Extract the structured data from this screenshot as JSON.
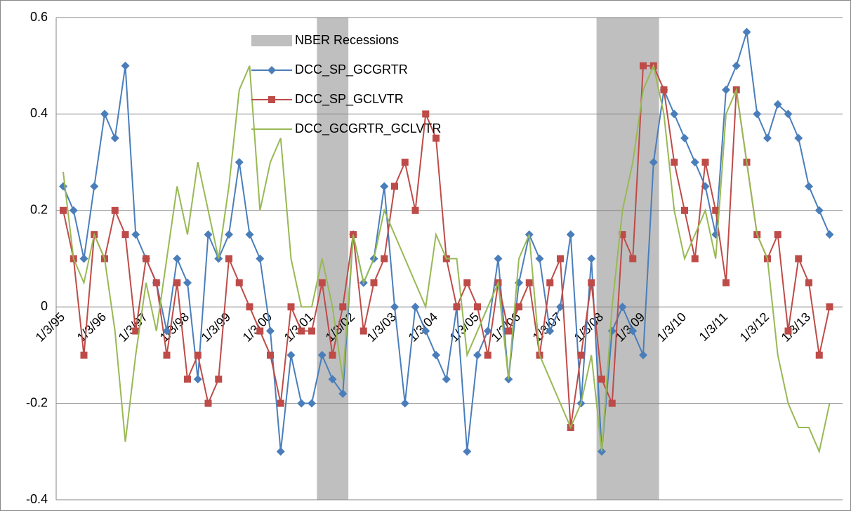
{
  "chart_data": {
    "type": "line",
    "categories": [
      "1/3/95",
      null,
      null,
      null,
      "1/3/96",
      null,
      null,
      null,
      "1/3/97",
      null,
      null,
      null,
      "1/3/98",
      null,
      null,
      null,
      "1/3/99",
      null,
      null,
      null,
      "1/3/00",
      null,
      null,
      null,
      "1/3/01",
      null,
      null,
      null,
      "1/3/02",
      null,
      null,
      null,
      "1/3/03",
      null,
      null,
      null,
      "1/3/04",
      null,
      null,
      null,
      "1/3/05",
      null,
      null,
      null,
      "1/3/06",
      null,
      null,
      null,
      "1/3/07",
      null,
      null,
      null,
      "1/3/08",
      null,
      null,
      null,
      "1/3/09",
      null,
      null,
      null,
      "1/3/10",
      null,
      null,
      null,
      "1/3/11",
      null,
      null,
      null,
      "1/3/12",
      null,
      null,
      null,
      "1/3/13",
      null,
      null
    ],
    "series": [
      {
        "name": "NBER Recessions",
        "type": "bar",
        "color": "#bfbfbf",
        "values": [
          null,
          null,
          null,
          null,
          null,
          null,
          null,
          null,
          null,
          null,
          null,
          null,
          null,
          null,
          null,
          null,
          null,
          null,
          null,
          null,
          null,
          null,
          null,
          null,
          null,
          0.6,
          0.6,
          0.6,
          null,
          null,
          null,
          null,
          null,
          null,
          null,
          null,
          null,
          null,
          null,
          null,
          null,
          null,
          null,
          null,
          null,
          null,
          null,
          null,
          null,
          null,
          null,
          null,
          0.6,
          0.6,
          0.6,
          0.6,
          0.6,
          0.6,
          null,
          null,
          null,
          null,
          null,
          null,
          null,
          null,
          null,
          null,
          null,
          null,
          null,
          null,
          null,
          null,
          null
        ]
      },
      {
        "name": "DCC_SP_GCGRTR",
        "type": "line",
        "marker": "diamond",
        "color": "#4a7ebb",
        "values": [
          0.25,
          0.2,
          0.1,
          0.25,
          0.4,
          0.35,
          0.5,
          0.15,
          0.1,
          0.05,
          -0.05,
          0.1,
          0.05,
          -0.15,
          0.15,
          0.1,
          0.15,
          0.3,
          0.15,
          0.1,
          -0.05,
          -0.3,
          -0.1,
          -0.2,
          -0.2,
          -0.1,
          -0.15,
          -0.18,
          0.15,
          0.05,
          0.1,
          0.25,
          0.0,
          -0.2,
          0.0,
          -0.05,
          -0.1,
          -0.15,
          0.0,
          -0.3,
          -0.1,
          -0.05,
          0.1,
          -0.15,
          0.05,
          0.15,
          0.1,
          -0.05,
          0.0,
          0.15,
          -0.2,
          0.1,
          -0.3,
          -0.05,
          0.0,
          -0.05,
          -0.1,
          0.3,
          0.45,
          0.4,
          0.35,
          0.3,
          0.25,
          0.15,
          0.45,
          0.5,
          0.57,
          0.4,
          0.35,
          0.42,
          0.4,
          0.35,
          0.25,
          0.2,
          0.15
        ]
      },
      {
        "name": "DCC_SP_GCLVTR",
        "type": "line",
        "marker": "square",
        "color": "#be4b48",
        "values": [
          0.2,
          0.1,
          -0.1,
          0.15,
          0.1,
          0.2,
          0.15,
          -0.05,
          0.1,
          0.05,
          -0.1,
          0.05,
          -0.15,
          -0.1,
          -0.2,
          -0.15,
          0.1,
          0.05,
          0.0,
          -0.05,
          -0.1,
          -0.2,
          0.0,
          -0.05,
          -0.05,
          0.05,
          -0.1,
          0.0,
          0.15,
          -0.05,
          0.05,
          0.1,
          0.25,
          0.3,
          0.2,
          0.4,
          0.35,
          0.1,
          0.0,
          0.05,
          0.0,
          -0.1,
          0.05,
          -0.05,
          0.0,
          0.05,
          -0.1,
          0.05,
          0.1,
          -0.25,
          -0.1,
          0.05,
          -0.15,
          -0.2,
          0.15,
          0.1,
          0.5,
          0.5,
          0.45,
          0.3,
          0.2,
          0.1,
          0.3,
          0.2,
          0.05,
          0.45,
          0.3,
          0.15,
          0.1,
          0.15,
          -0.05,
          0.1,
          0.05,
          -0.1,
          0.0
        ]
      },
      {
        "name": "DCC_GCGRTR_GCLVTR",
        "type": "line",
        "marker": "none",
        "color": "#98b954",
        "values": [
          0.28,
          0.1,
          0.05,
          0.15,
          0.1,
          -0.05,
          -0.28,
          -0.1,
          0.05,
          -0.05,
          0.1,
          0.25,
          0.15,
          0.3,
          0.2,
          0.1,
          0.25,
          0.45,
          0.5,
          0.2,
          0.3,
          0.35,
          0.1,
          0.0,
          0.0,
          0.1,
          0.0,
          -0.15,
          0.15,
          0.05,
          0.1,
          0.2,
          0.15,
          0.1,
          0.05,
          0.0,
          0.15,
          0.1,
          0.1,
          -0.1,
          -0.05,
          0.0,
          0.05,
          -0.15,
          0.1,
          0.15,
          -0.1,
          -0.15,
          -0.2,
          -0.25,
          -0.2,
          -0.1,
          -0.3,
          0.0,
          0.2,
          0.3,
          0.45,
          0.5,
          0.4,
          0.2,
          0.1,
          0.15,
          0.2,
          0.1,
          0.4,
          0.45,
          0.3,
          0.15,
          0.1,
          -0.1,
          -0.2,
          -0.25,
          -0.25,
          -0.3,
          -0.2
        ]
      }
    ],
    "ylim": [
      -0.4,
      0.6
    ],
    "yticks": [
      -0.4,
      -0.2,
      0,
      0.2,
      0.4,
      0.6
    ],
    "grid": true
  }
}
